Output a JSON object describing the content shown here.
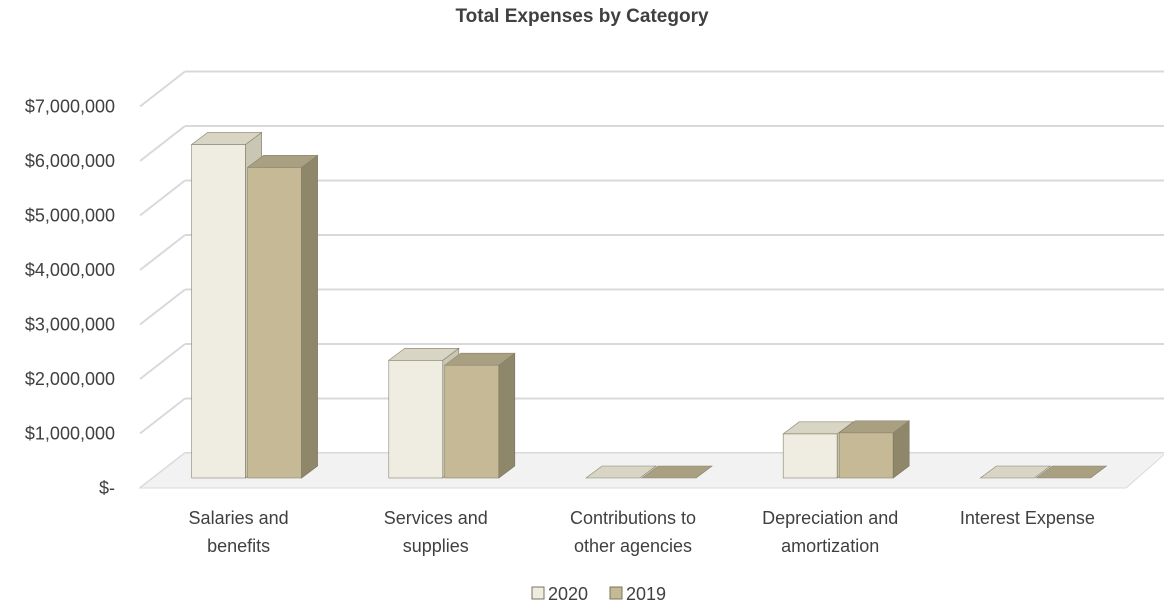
{
  "chart_data": {
    "type": "bar",
    "title": "Total Expenses by Category",
    "categories": [
      [
        "Salaries and",
        "benefits"
      ],
      [
        "Services and",
        "supplies"
      ],
      [
        "Contributions to",
        "other agencies"
      ],
      [
        "Depreciation and",
        "amortization"
      ],
      [
        "Interest Expense"
      ]
    ],
    "series": [
      {
        "name": "2020",
        "values": [
          6120000,
          2160000,
          0,
          810000,
          0
        ],
        "color": "#efede1",
        "side_color": "#c9c6b4",
        "top_color": "#d8d5c5"
      },
      {
        "name": "2019",
        "values": [
          5700000,
          2070000,
          0,
          830000,
          0
        ],
        "color": "#c6ba96",
        "side_color": "#8f876a",
        "top_color": "#a8a080"
      }
    ],
    "ylim": [
      0,
      7000000
    ],
    "y_ticks": [
      0,
      1000000,
      2000000,
      3000000,
      4000000,
      5000000,
      6000000,
      7000000
    ],
    "y_tick_labels": [
      "$-",
      "$1,000,000",
      "$2,000,000",
      "$3,000,000",
      "$4,000,000",
      "$5,000,000",
      "$6,000,000",
      "$7,000,000"
    ],
    "grid": true,
    "legend_position": "bottom",
    "style": "3d-column"
  }
}
